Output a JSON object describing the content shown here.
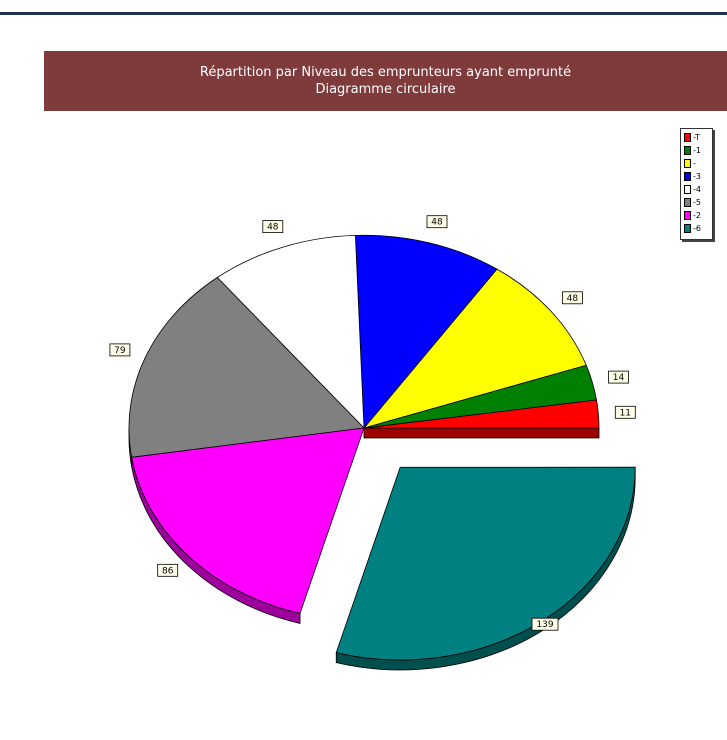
{
  "chart_data": {
    "type": "pie",
    "title": "Répartition par Niveau des emprunteurs ayant emprunté",
    "subtitle": "Diagramme circulaire",
    "legend_position": "top-right",
    "legend_order": [
      "-T",
      "-1",
      "-",
      "-3",
      "-4",
      "-5",
      "-2",
      "-6"
    ],
    "slices": [
      {
        "label": "-T",
        "value": 11,
        "color": "#ff0000",
        "exploded": false
      },
      {
        "label": "-1",
        "value": 14,
        "color": "#008000",
        "exploded": false
      },
      {
        "label": "-",
        "value": 48,
        "color": "#ffff00",
        "exploded": false
      },
      {
        "label": "-3",
        "value": 48,
        "color": "#0000ff",
        "exploded": false
      },
      {
        "label": "-4",
        "value": 48,
        "color": "#ffffff",
        "exploded": false
      },
      {
        "label": "-5",
        "value": 79,
        "color": "#808080",
        "exploded": false
      },
      {
        "label": "-2",
        "value": 86,
        "color": "#ff00ff",
        "exploded": false
      },
      {
        "label": "-6",
        "value": 139,
        "color": "#008080",
        "exploded": true
      }
    ]
  }
}
